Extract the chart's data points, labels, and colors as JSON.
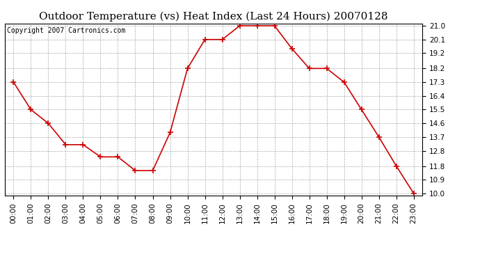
{
  "title": "Outdoor Temperature (vs) Heat Index (Last 24 Hours) 20070128",
  "copyright": "Copyright 2007 Cartronics.com",
  "hours": [
    "00:00",
    "01:00",
    "02:00",
    "03:00",
    "04:00",
    "05:00",
    "06:00",
    "07:00",
    "08:00",
    "09:00",
    "10:00",
    "11:00",
    "12:00",
    "13:00",
    "14:00",
    "15:00",
    "16:00",
    "17:00",
    "18:00",
    "19:00",
    "20:00",
    "21:00",
    "22:00",
    "23:00"
  ],
  "values": [
    17.3,
    15.5,
    14.6,
    13.2,
    13.2,
    12.4,
    12.4,
    11.5,
    11.5,
    14.0,
    18.2,
    20.1,
    20.1,
    21.0,
    21.0,
    21.0,
    19.5,
    18.2,
    18.2,
    17.3,
    15.5,
    13.7,
    11.8,
    10.0
  ],
  "line_color": "#cc0000",
  "marker": "+",
  "marker_size": 6,
  "marker_color": "#cc0000",
  "background_color": "#ffffff",
  "plot_bg_color": "#ffffff",
  "grid_color": "#aaaaaa",
  "yticks": [
    10.0,
    10.9,
    11.8,
    12.8,
    13.7,
    14.6,
    15.5,
    16.4,
    17.3,
    18.2,
    19.2,
    20.1,
    21.0
  ],
  "ymin": 9.85,
  "ymax": 21.15,
  "title_fontsize": 11,
  "copyright_fontsize": 7,
  "tick_fontsize": 7.5
}
